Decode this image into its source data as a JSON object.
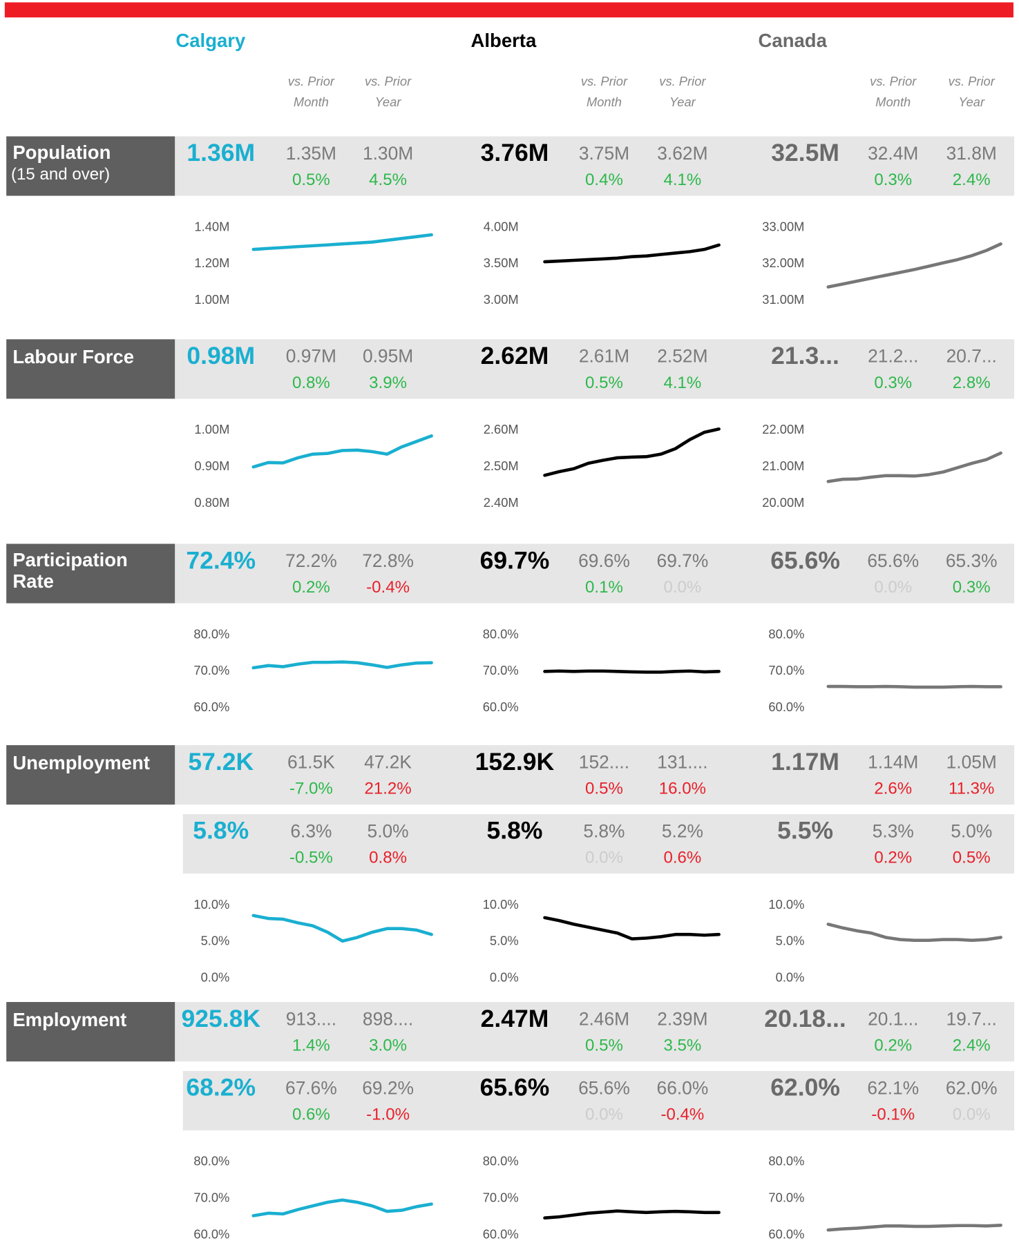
{
  "regions": [
    {
      "name": "Calgary",
      "color": "#1aafd0"
    },
    {
      "name": "Alberta",
      "color": "#000000"
    },
    {
      "name": "Canada",
      "color": "#6a6a6a"
    }
  ],
  "column_headers": [
    {
      "line1": "vs. Prior",
      "line2": "Month"
    },
    {
      "line1": "vs. Prior",
      "line2": "Year"
    }
  ],
  "metrics": [
    {
      "label": [
        "Population"
      ],
      "sublabel": "(15 and over)",
      "rows": [
        [
          {
            "value": "1.36M",
            "month": "1.35M",
            "month_change": "0.5%",
            "month_color": "#2db84b",
            "year": "1.30M",
            "year_change": "4.5%",
            "year_color": "#2db84b"
          },
          {
            "value": "3.76M",
            "month": "3.75M",
            "month_change": "0.4%",
            "month_color": "#2db84b",
            "year": "3.62M",
            "year_change": "4.1%",
            "year_color": "#2db84b"
          },
          {
            "value": "32.5M",
            "month": "32.4M",
            "month_change": "0.3%",
            "month_color": "#2db84b",
            "year": "31.8M",
            "year_change": "2.4%",
            "year_color": "#2db84b"
          }
        ]
      ],
      "charts": [
        {
          "type": "line",
          "ylim": [
            1000000,
            1400000
          ],
          "yticks": [
            {
              "value": 1000000,
              "label": "1.00M"
            },
            {
              "value": 1200000,
              "label": "1.20M"
            },
            {
              "value": 1400000,
              "label": "1.40M"
            }
          ],
          "values": [
            1280000,
            1285000,
            1290000,
            1295000,
            1300000,
            1305000,
            1310000,
            1315000,
            1320000,
            1330000,
            1340000,
            1350000,
            1360000
          ]
        },
        {
          "type": "line",
          "ylim": [
            3000000,
            4000000
          ],
          "yticks": [
            {
              "value": 3000000,
              "label": "3.00M"
            },
            {
              "value": 3500000,
              "label": "3.50M"
            },
            {
              "value": 4000000,
              "label": "4.00M"
            }
          ],
          "values": [
            3530000,
            3540000,
            3550000,
            3560000,
            3570000,
            3580000,
            3600000,
            3610000,
            3630000,
            3650000,
            3670000,
            3700000,
            3760000
          ]
        },
        {
          "type": "line",
          "ylim": [
            31000000,
            33000000
          ],
          "yticks": [
            {
              "value": 31000000,
              "label": "31.00M"
            },
            {
              "value": 32000000,
              "label": "32.00M"
            },
            {
              "value": 33000000,
              "label": "33.00M"
            }
          ],
          "values": [
            31370000,
            31450000,
            31530000,
            31610000,
            31690000,
            31770000,
            31850000,
            31940000,
            32030000,
            32120000,
            32230000,
            32370000,
            32550000
          ]
        }
      ]
    },
    {
      "label": [
        "Labour Force"
      ],
      "rows": [
        [
          {
            "value": "0.98M",
            "month": "0.97M",
            "month_change": "0.8%",
            "month_color": "#2db84b",
            "year": "0.95M",
            "year_change": "3.9%",
            "year_color": "#2db84b"
          },
          {
            "value": "2.62M",
            "month": "2.61M",
            "month_change": "0.5%",
            "month_color": "#2db84b",
            "year": "2.52M",
            "year_change": "4.1%",
            "year_color": "#2db84b"
          },
          {
            "value": "21.3...",
            "month": "21.2...",
            "month_change": "0.3%",
            "month_color": "#2db84b",
            "year": "20.7...",
            "year_change": "2.8%",
            "year_color": "#2db84b"
          }
        ]
      ],
      "charts": [
        {
          "type": "line",
          "ylim": [
            800000,
            1000000
          ],
          "yticks": [
            {
              "value": 800000,
              "label": "0.80M"
            },
            {
              "value": 900000,
              "label": "0.90M"
            },
            {
              "value": 1000000,
              "label": "1.00M"
            }
          ],
          "values": [
            900000,
            912000,
            911000,
            925000,
            935000,
            937000,
            945000,
            946000,
            942000,
            935000,
            955000,
            970000,
            985000
          ]
        },
        {
          "type": "line",
          "ylim": [
            2400000,
            2600000
          ],
          "yticks": [
            {
              "value": 2400000,
              "label": "2.40M"
            },
            {
              "value": 2500000,
              "label": "2.50M"
            },
            {
              "value": 2600000,
              "label": "2.60M"
            }
          ],
          "values": [
            2477000,
            2487000,
            2495000,
            2510000,
            2518000,
            2525000,
            2527000,
            2528000,
            2535000,
            2550000,
            2575000,
            2595000,
            2604000
          ]
        },
        {
          "type": "line",
          "ylim": [
            20000000,
            22000000
          ],
          "yticks": [
            {
              "value": 20000000,
              "label": "20.00M"
            },
            {
              "value": 21000000,
              "label": "21.00M"
            },
            {
              "value": 22000000,
              "label": "22.00M"
            }
          ],
          "values": [
            20600000,
            20660000,
            20670000,
            20720000,
            20760000,
            20760000,
            20750000,
            20790000,
            20860000,
            20980000,
            21100000,
            21200000,
            21380000
          ]
        }
      ]
    },
    {
      "label": [
        "Participation",
        "Rate"
      ],
      "rows": [
        [
          {
            "value": "72.4%",
            "month": "72.2%",
            "month_change": "0.2%",
            "month_color": "#2db84b",
            "year": "72.8%",
            "year_change": "-0.4%",
            "year_color": "#e8202a"
          },
          {
            "value": "69.7%",
            "month": "69.6%",
            "month_change": "0.1%",
            "month_color": "#2db84b",
            "year": "69.7%",
            "year_change": "0.0%",
            "year_color": "#cccccc"
          },
          {
            "value": "65.6%",
            "month": "65.6%",
            "month_change": "0.0%",
            "month_color": "#cccccc",
            "year": "65.3%",
            "year_change": "0.3%",
            "year_color": "#2db84b"
          }
        ]
      ],
      "charts": [
        {
          "type": "line",
          "ylim": [
            60,
            80
          ],
          "yticks": [
            {
              "value": 60,
              "label": "60.0%"
            },
            {
              "value": 70,
              "label": "70.0%"
            },
            {
              "value": 80,
              "label": "80.0%"
            }
          ],
          "values": [
            71.0,
            71.6,
            71.3,
            72.0,
            72.5,
            72.5,
            72.6,
            72.4,
            71.8,
            71.1,
            71.8,
            72.3,
            72.4
          ]
        },
        {
          "type": "line",
          "ylim": [
            60,
            80
          ],
          "yticks": [
            {
              "value": 60,
              "label": "60.0%"
            },
            {
              "value": 70,
              "label": "70.0%"
            },
            {
              "value": 80,
              "label": "80.0%"
            }
          ],
          "values": [
            70.0,
            70.1,
            70.0,
            70.1,
            70.1,
            70.0,
            69.9,
            69.8,
            69.8,
            70.0,
            70.1,
            69.9,
            70.0
          ]
        },
        {
          "type": "line",
          "ylim": [
            60,
            80
          ],
          "yticks": [
            {
              "value": 60,
              "label": "60.0%"
            },
            {
              "value": 70,
              "label": "70.0%"
            },
            {
              "value": 80,
              "label": "80.0%"
            }
          ],
          "values": [
            65.9,
            65.9,
            65.8,
            65.8,
            65.9,
            65.8,
            65.7,
            65.7,
            65.7,
            65.8,
            65.9,
            65.8,
            65.8
          ]
        }
      ]
    },
    {
      "label": [
        "Unemployment"
      ],
      "rows": [
        [
          {
            "value": "57.2K",
            "month": "61.5K",
            "month_change": "-7.0%",
            "month_color": "#2db84b",
            "year": "47.2K",
            "year_change": "21.2%",
            "year_color": "#e8202a"
          },
          {
            "value": "152.9K",
            "month": "152....",
            "month_change": "0.5%",
            "month_color": "#e8202a",
            "year": "131....",
            "year_change": "16.0%",
            "year_color": "#e8202a"
          },
          {
            "value": "1.17M",
            "month": "1.14M",
            "month_change": "2.6%",
            "month_color": "#e8202a",
            "year": "1.05M",
            "year_change": "11.3%",
            "year_color": "#e8202a"
          }
        ],
        [
          {
            "value": "5.8%",
            "month": "6.3%",
            "month_change": "-0.5%",
            "month_color": "#2db84b",
            "year": "5.0%",
            "year_change": "0.8%",
            "year_color": "#e8202a"
          },
          {
            "value": "5.8%",
            "month": "5.8%",
            "month_change": "0.0%",
            "month_color": "#cccccc",
            "year": "5.2%",
            "year_change": "0.6%",
            "year_color": "#e8202a"
          },
          {
            "value": "5.5%",
            "month": "5.3%",
            "month_change": "0.2%",
            "month_color": "#e8202a",
            "year": "5.0%",
            "year_change": "0.5%",
            "year_color": "#e8202a"
          }
        ]
      ],
      "charts": [
        {
          "type": "line",
          "ylim": [
            0,
            10
          ],
          "yticks": [
            {
              "value": 0,
              "label": "0.0%"
            },
            {
              "value": 5,
              "label": "5.0%"
            },
            {
              "value": 10,
              "label": "10.0%"
            }
          ],
          "values": [
            8.6,
            8.2,
            8.1,
            7.6,
            7.2,
            6.3,
            5.1,
            5.6,
            6.3,
            6.8,
            6.8,
            6.6,
            6.0
          ]
        },
        {
          "type": "line",
          "ylim": [
            0,
            10
          ],
          "yticks": [
            {
              "value": 0,
              "label": "0.0%"
            },
            {
              "value": 5,
              "label": "5.0%"
            },
            {
              "value": 10,
              "label": "10.0%"
            }
          ],
          "values": [
            8.3,
            7.9,
            7.4,
            7.0,
            6.6,
            6.2,
            5.4,
            5.5,
            5.7,
            6.0,
            6.0,
            5.9,
            6.0
          ]
        },
        {
          "type": "line",
          "ylim": [
            0,
            10
          ],
          "yticks": [
            {
              "value": 0,
              "label": "0.0%"
            },
            {
              "value": 5,
              "label": "5.0%"
            },
            {
              "value": 10,
              "label": "10.0%"
            }
          ],
          "values": [
            7.4,
            6.9,
            6.5,
            6.2,
            5.6,
            5.3,
            5.2,
            5.2,
            5.3,
            5.3,
            5.2,
            5.3,
            5.6
          ]
        }
      ]
    },
    {
      "label": [
        "Employment"
      ],
      "rows": [
        [
          {
            "value": "925.8K",
            "month": "913....",
            "month_change": "1.4%",
            "month_color": "#2db84b",
            "year": "898....",
            "year_change": "3.0%",
            "year_color": "#2db84b"
          },
          {
            "value": "2.47M",
            "month": "2.46M",
            "month_change": "0.5%",
            "month_color": "#2db84b",
            "year": "2.39M",
            "year_change": "3.5%",
            "year_color": "#2db84b"
          },
          {
            "value": "20.18...",
            "month": "20.1...",
            "month_change": "0.2%",
            "month_color": "#2db84b",
            "year": "19.7...",
            "year_change": "2.4%",
            "year_color": "#2db84b"
          }
        ],
        [
          {
            "value": "68.2%",
            "month": "67.6%",
            "month_change": "0.6%",
            "month_color": "#2db84b",
            "year": "69.2%",
            "year_change": "-1.0%",
            "year_color": "#e8202a"
          },
          {
            "value": "65.6%",
            "month": "65.6%",
            "month_change": "0.0%",
            "month_color": "#cccccc",
            "year": "66.0%",
            "year_change": "-0.4%",
            "year_color": "#e8202a"
          },
          {
            "value": "62.0%",
            "month": "62.1%",
            "month_change": "-0.1%",
            "month_color": "#e8202a",
            "year": "62.0%",
            "year_change": "0.0%",
            "year_color": "#cccccc"
          }
        ]
      ],
      "charts": [
        {
          "type": "line",
          "ylim": [
            60,
            80
          ],
          "yticks": [
            {
              "value": 60,
              "label": "60.0%"
            },
            {
              "value": 70,
              "label": "70.0%"
            },
            {
              "value": 80,
              "label": "80.0%"
            }
          ],
          "values": [
            65.3,
            66.0,
            65.8,
            67.0,
            68.0,
            69.0,
            69.6,
            69.0,
            68.0,
            66.5,
            66.8,
            67.8,
            68.5
          ]
        },
        {
          "type": "line",
          "ylim": [
            60,
            80
          ],
          "yticks": [
            {
              "value": 60,
              "label": "60.0%"
            },
            {
              "value": 70,
              "label": "70.0%"
            },
            {
              "value": 80,
              "label": "80.0%"
            }
          ],
          "values": [
            64.7,
            65.0,
            65.5,
            66.0,
            66.3,
            66.6,
            66.4,
            66.2,
            66.4,
            66.5,
            66.4,
            66.2,
            66.2
          ]
        },
        {
          "type": "line",
          "ylim": [
            60,
            80
          ],
          "yticks": [
            {
              "value": 60,
              "label": "60.0%"
            },
            {
              "value": 70,
              "label": "70.0%"
            },
            {
              "value": 80,
              "label": "80.0%"
            }
          ],
          "values": [
            61.4,
            61.7,
            61.9,
            62.2,
            62.5,
            62.5,
            62.4,
            62.4,
            62.5,
            62.6,
            62.6,
            62.5,
            62.7
          ]
        }
      ]
    }
  ]
}
